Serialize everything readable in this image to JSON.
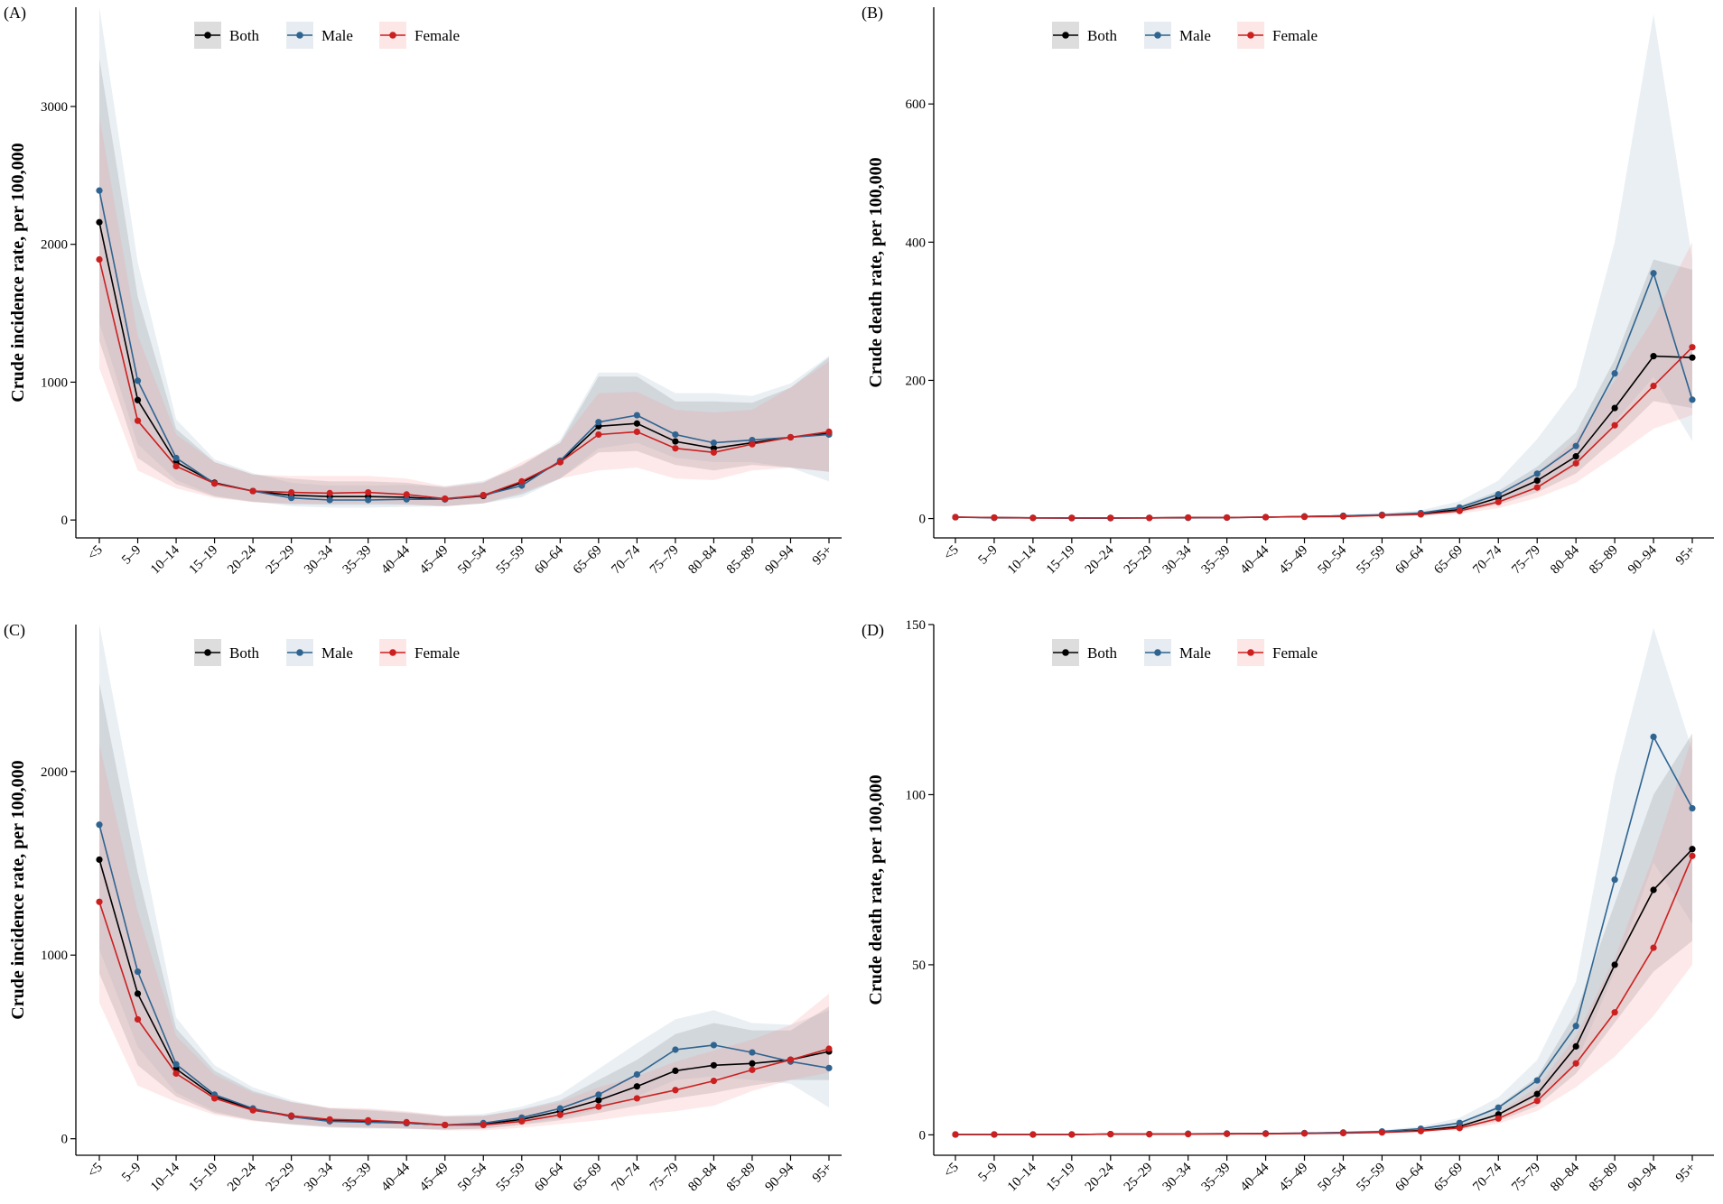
{
  "colors": {
    "both": "#000000",
    "male": "#2f6490",
    "female": "#cc1f1f"
  },
  "categories": [
    "<5",
    "5–9",
    "10–14",
    "15–19",
    "20–24",
    "25–29",
    "30–34",
    "35–39",
    "40–44",
    "45–49",
    "50–54",
    "55–59",
    "60–64",
    "65–69",
    "70–74",
    "75–79",
    "80–84",
    "85–89",
    "90–94",
    "95+"
  ],
  "chart_data": [
    {
      "panel": "(A)",
      "type": "line",
      "ylabel": "Crude incidence rate, per 100,000",
      "ylim": [
        -130,
        3720
      ],
      "yticks": [
        0,
        1000,
        2000,
        3000
      ],
      "legend": [
        "Both",
        "Male",
        "Female"
      ],
      "series": [
        {
          "name": "Both",
          "key": "both",
          "values": [
            2160,
            870,
            420,
            270,
            210,
            180,
            170,
            170,
            165,
            150,
            175,
            270,
            420,
            680,
            700,
            570,
            520,
            560,
            600,
            630
          ],
          "lower": [
            1300,
            450,
            260,
            170,
            130,
            115,
            110,
            110,
            110,
            100,
            120,
            185,
            300,
            490,
            500,
            400,
            360,
            400,
            380,
            350
          ],
          "upper": [
            3350,
            1620,
            660,
            420,
            330,
            300,
            280,
            280,
            270,
            235,
            270,
            400,
            560,
            1040,
            1040,
            860,
            860,
            850,
            960,
            1180
          ]
        },
        {
          "name": "Male",
          "key": "male",
          "values": [
            2390,
            1010,
            450,
            265,
            210,
            160,
            145,
            145,
            150,
            150,
            180,
            250,
            430,
            710,
            760,
            620,
            560,
            580,
            600,
            620
          ],
          "lower": [
            1430,
            550,
            290,
            175,
            135,
            100,
            90,
            90,
            95,
            100,
            120,
            165,
            300,
            520,
            560,
            450,
            420,
            420,
            380,
            280
          ],
          "upper": [
            3720,
            1870,
            730,
            440,
            340,
            270,
            250,
            250,
            255,
            245,
            285,
            390,
            580,
            1070,
            1070,
            920,
            920,
            900,
            990,
            1190
          ]
        },
        {
          "name": "Female",
          "key": "female",
          "values": [
            1890,
            720,
            390,
            265,
            210,
            200,
            195,
            200,
            185,
            155,
            180,
            280,
            420,
            620,
            640,
            520,
            490,
            550,
            600,
            640
          ],
          "lower": [
            1100,
            360,
            230,
            160,
            130,
            120,
            120,
            125,
            115,
            100,
            120,
            200,
            300,
            360,
            380,
            300,
            290,
            360,
            380,
            350
          ],
          "upper": [
            2930,
            1340,
            620,
            420,
            330,
            320,
            320,
            320,
            300,
            245,
            275,
            420,
            560,
            920,
            930,
            800,
            780,
            800,
            960,
            1150
          ]
        }
      ]
    },
    {
      "panel": "(B)",
      "type": "line",
      "ylabel": "Crude death rate, per 100,000",
      "ylim": [
        -28,
        740
      ],
      "yticks": [
        0,
        200,
        400,
        600
      ],
      "legend": [
        "Both",
        "Male",
        "Female"
      ],
      "series": [
        {
          "name": "Both",
          "key": "both",
          "values": [
            2,
            1.5,
            1,
            1,
            1,
            1,
            1.5,
            1.5,
            2,
            3,
            4,
            5,
            7,
            13,
            30,
            55,
            90,
            160,
            235,
            233
          ],
          "lower": [
            1,
            1,
            0.5,
            0.5,
            0.5,
            0.5,
            1,
            1,
            1.5,
            2,
            3,
            4,
            5,
            9,
            20,
            38,
            65,
            115,
            170,
            160
          ],
          "upper": [
            3,
            2,
            1.5,
            1.5,
            1.5,
            1.5,
            2,
            2,
            3,
            4,
            5,
            7,
            10,
            18,
            40,
            75,
            125,
            230,
            375,
            360
          ]
        },
        {
          "name": "Male",
          "key": "male",
          "values": [
            2,
            1,
            1,
            0.5,
            0.5,
            1,
            1,
            1.5,
            2,
            3,
            4,
            5.5,
            8,
            16,
            35,
            65,
            105,
            210,
            355,
            172
          ],
          "lower": [
            1,
            0.5,
            0.5,
            0.3,
            0.3,
            0.5,
            0.5,
            1,
            1,
            2,
            3,
            4,
            5,
            10,
            24,
            45,
            75,
            140,
            205,
            112
          ],
          "upper": [
            3,
            2,
            1.5,
            1,
            1,
            1.5,
            1.5,
            2,
            3,
            4,
            6,
            8,
            12,
            25,
            55,
            115,
            190,
            400,
            730,
            375
          ]
        },
        {
          "name": "Female",
          "key": "female",
          "values": [
            2,
            1.5,
            1,
            1,
            1,
            1,
            1.5,
            1.5,
            2,
            2.5,
            3,
            4.5,
            6,
            11,
            24,
            45,
            80,
            135,
            192,
            248
          ],
          "lower": [
            1,
            1,
            0.5,
            0.5,
            0.5,
            0.5,
            1,
            1,
            1.5,
            2,
            2,
            3,
            4,
            7,
            15,
            30,
            52,
            90,
            130,
            150
          ],
          "upper": [
            3,
            2,
            1.5,
            1.5,
            1.5,
            1.5,
            2,
            2,
            3,
            3.5,
            4,
            6,
            9,
            16,
            35,
            65,
            115,
            200,
            290,
            400
          ]
        }
      ]
    },
    {
      "panel": "(C)",
      "type": "line",
      "ylabel": "Crude incidence rate, per 100,000",
      "ylim": [
        -90,
        2800
      ],
      "yticks": [
        0,
        1000,
        2000
      ],
      "legend": [
        "Both",
        "Male",
        "Female"
      ],
      "series": [
        {
          "name": "Both",
          "key": "both",
          "values": [
            1520,
            790,
            380,
            230,
            160,
            125,
            100,
            95,
            85,
            75,
            80,
            105,
            150,
            210,
            285,
            370,
            400,
            410,
            430,
            475
          ],
          "lower": [
            900,
            400,
            230,
            140,
            100,
            80,
            65,
            60,
            55,
            50,
            55,
            75,
            100,
            140,
            180,
            220,
            250,
            290,
            320,
            320
          ],
          "upper": [
            2480,
            1450,
            600,
            370,
            260,
            200,
            165,
            155,
            140,
            120,
            125,
            160,
            210,
            320,
            430,
            570,
            630,
            590,
            590,
            720
          ]
        },
        {
          "name": "Male",
          "key": "male",
          "values": [
            1710,
            910,
            405,
            240,
            165,
            120,
            95,
            90,
            85,
            75,
            85,
            115,
            165,
            240,
            350,
            485,
            510,
            470,
            420,
            385
          ],
          "lower": [
            1030,
            500,
            250,
            150,
            100,
            75,
            60,
            55,
            55,
            50,
            55,
            80,
            110,
            160,
            230,
            320,
            340,
            320,
            300,
            170
          ],
          "upper": [
            2800,
            1700,
            660,
            400,
            280,
            210,
            165,
            160,
            145,
            125,
            135,
            175,
            240,
            380,
            520,
            650,
            700,
            630,
            620,
            700
          ]
        },
        {
          "name": "Female",
          "key": "female",
          "values": [
            1290,
            650,
            355,
            220,
            155,
            125,
            105,
            100,
            90,
            75,
            75,
            95,
            130,
            175,
            220,
            265,
            315,
            375,
            430,
            490
          ],
          "lower": [
            740,
            290,
            200,
            130,
            95,
            80,
            65,
            60,
            55,
            45,
            45,
            60,
            80,
            100,
            130,
            150,
            180,
            260,
            320,
            360
          ],
          "upper": [
            2150,
            1240,
            560,
            350,
            250,
            200,
            170,
            165,
            150,
            125,
            125,
            155,
            200,
            280,
            340,
            420,
            480,
            540,
            620,
            790
          ]
        }
      ]
    },
    {
      "panel": "(D)",
      "type": "line",
      "ylabel": "Crude death rate, per 100,000",
      "ylim": [
        -6,
        150
      ],
      "yticks": [
        0,
        50,
        100,
        150
      ],
      "legend": [
        "Both",
        "Male",
        "Female"
      ],
      "series": [
        {
          "name": "Both",
          "key": "both",
          "values": [
            0.1,
            0.1,
            0.1,
            0.1,
            0.2,
            0.2,
            0.3,
            0.3,
            0.4,
            0.5,
            0.6,
            0.8,
            1.3,
            2.5,
            6,
            12,
            26,
            50,
            72,
            84
          ],
          "lower": [
            0.05,
            0.05,
            0.05,
            0.05,
            0.1,
            0.1,
            0.2,
            0.2,
            0.3,
            0.3,
            0.4,
            0.6,
            1,
            1.8,
            4,
            8.5,
            18,
            33,
            48,
            57
          ],
          "upper": [
            0.2,
            0.2,
            0.2,
            0.2,
            0.3,
            0.3,
            0.4,
            0.5,
            0.6,
            0.7,
            0.9,
            1.1,
            1.8,
            3.5,
            8.5,
            17,
            36,
            68,
            100,
            118
          ]
        },
        {
          "name": "Male",
          "key": "male",
          "values": [
            0.1,
            0.1,
            0.1,
            0.1,
            0.2,
            0.2,
            0.3,
            0.4,
            0.4,
            0.5,
            0.7,
            1,
            1.8,
            3.5,
            8,
            16,
            32,
            75,
            117,
            96
          ],
          "lower": [
            0.05,
            0.05,
            0.05,
            0.05,
            0.1,
            0.1,
            0.2,
            0.3,
            0.3,
            0.3,
            0.5,
            0.7,
            1.3,
            2.5,
            5.5,
            11,
            21,
            48,
            80,
            62
          ],
          "upper": [
            0.2,
            0.2,
            0.2,
            0.2,
            0.3,
            0.3,
            0.4,
            0.6,
            0.6,
            0.8,
            1,
            1.4,
            2.5,
            5,
            11,
            22,
            45,
            105,
            149,
            113
          ]
        },
        {
          "name": "Female",
          "key": "female",
          "values": [
            0.1,
            0.1,
            0.1,
            0.1,
            0.2,
            0.2,
            0.2,
            0.3,
            0.3,
            0.4,
            0.5,
            0.7,
            1.1,
            2,
            4.8,
            10,
            21,
            36,
            55,
            82
          ],
          "lower": [
            0.05,
            0.05,
            0.05,
            0.05,
            0.1,
            0.1,
            0.1,
            0.2,
            0.2,
            0.3,
            0.3,
            0.5,
            0.8,
            1.4,
            3.3,
            7,
            14,
            23,
            35,
            50
          ],
          "upper": [
            0.2,
            0.2,
            0.2,
            0.2,
            0.3,
            0.3,
            0.3,
            0.4,
            0.4,
            0.6,
            0.7,
            1,
            1.5,
            2.8,
            6.5,
            14,
            29,
            52,
            82,
            117
          ]
        }
      ]
    }
  ]
}
